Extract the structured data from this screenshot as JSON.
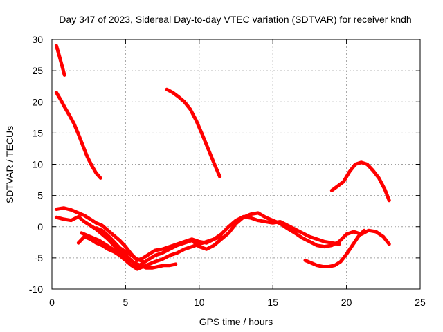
{
  "chart_data": {
    "type": "scatter",
    "title": "Day 347 of 2023, Sidereal Day-to-day VTEC variation (SDTVAR) for receiver kndh",
    "xlabel": "GPS time / hours",
    "ylabel": "SDTVAR / TECUs",
    "xlim": [
      0,
      25
    ],
    "ylim": [
      -10,
      30
    ],
    "xticks": [
      0,
      5,
      10,
      15,
      20,
      25
    ],
    "yticks": [
      -10,
      -5,
      0,
      5,
      10,
      15,
      20,
      25,
      30
    ],
    "xtick_labels": [
      "0",
      "5",
      "10",
      "15",
      "20",
      "25"
    ],
    "ytick_labels": [
      "-10",
      "-5",
      "0",
      "5",
      "10",
      "15",
      "20",
      "25",
      "30"
    ],
    "grid": true,
    "marker_color": "#ff0000",
    "series": [
      {
        "name": "arc-1",
        "x": [
          0.3,
          0.45,
          0.6,
          0.75,
          0.85
        ],
        "y": [
          29,
          27.8,
          26.5,
          25.2,
          24.3
        ]
      },
      {
        "name": "arc-2",
        "x": [
          0.3,
          0.6,
          0.9,
          1.2,
          1.5,
          1.8,
          2.1,
          2.4,
          2.7,
          3.0,
          3.3
        ],
        "y": [
          21.5,
          20.3,
          19.0,
          17.8,
          16.5,
          14.8,
          13.0,
          11.2,
          9.8,
          8.6,
          7.8
        ]
      },
      {
        "name": "arc-3",
        "x": [
          7.8,
          8.2,
          8.6,
          9.0,
          9.4,
          9.8,
          10.2,
          10.6,
          11.0,
          11.4
        ],
        "y": [
          22.0,
          21.5,
          20.8,
          20.0,
          18.8,
          17.0,
          14.8,
          12.5,
          10.2,
          8.0
        ]
      },
      {
        "name": "arc-4",
        "x": [
          19.0,
          19.4,
          19.8,
          20.2,
          20.6,
          21.0,
          21.4,
          21.8,
          22.2,
          22.6,
          22.9
        ],
        "y": [
          5.8,
          6.5,
          7.2,
          8.8,
          10.0,
          10.3,
          10.0,
          9.0,
          7.8,
          6.0,
          4.2
        ]
      },
      {
        "name": "arc-5",
        "x": [
          0.3,
          0.8,
          1.3,
          1.8,
          2.2,
          2.6,
          3.0,
          3.4,
          3.8,
          4.2,
          4.6,
          5.0,
          5.4,
          5.8,
          6.2,
          6.6,
          7.0,
          7.5,
          8.0,
          8.5,
          9.0,
          9.5,
          10.0,
          10.5,
          11.0,
          11.5,
          12.0,
          12.5,
          13.0,
          13.5,
          14.0,
          14.5,
          15.0,
          15.5,
          16.0,
          16.5,
          17.0,
          17.5,
          18.0,
          18.5,
          19.0,
          19.5
        ],
        "y": [
          2.8,
          3.0,
          2.7,
          2.2,
          1.8,
          1.2,
          0.6,
          0.2,
          -0.6,
          -1.4,
          -2.2,
          -3.2,
          -4.4,
          -5.4,
          -5.0,
          -4.4,
          -3.8,
          -3.6,
          -3.2,
          -2.8,
          -2.4,
          -2.0,
          -2.4,
          -2.6,
          -2.0,
          -1.2,
          0.0,
          1.0,
          1.6,
          1.4,
          1.0,
          0.8,
          0.6,
          0.8,
          0.2,
          -0.4,
          -1.0,
          -1.6,
          -2.0,
          -2.4,
          -2.6,
          -2.8
        ]
      },
      {
        "name": "arc-6",
        "x": [
          0.3,
          0.8,
          1.3,
          1.8,
          2.2,
          2.6,
          3.0,
          3.4,
          3.8,
          4.2,
          4.6,
          5.0,
          5.4,
          5.8,
          6.2,
          6.6,
          7.0,
          7.5,
          8.0,
          8.5,
          9.0,
          9.5,
          10.0,
          10.5,
          11.0,
          11.5,
          12.0,
          12.5,
          13.0,
          13.5,
          14.0,
          14.5,
          15.0,
          15.5,
          16.0,
          16.5,
          17.0,
          17.5,
          18.0,
          18.5,
          19.0,
          19.5,
          20.0,
          20.5,
          21.0,
          21.5,
          22.0,
          22.5,
          22.9
        ],
        "y": [
          1.5,
          1.2,
          1.0,
          1.6,
          0.8,
          0.2,
          -0.4,
          -1.2,
          -2.0,
          -3.0,
          -3.8,
          -4.6,
          -5.4,
          -6.4,
          -5.8,
          -5.2,
          -4.6,
          -4.2,
          -3.6,
          -3.0,
          -2.6,
          -2.2,
          -3.2,
          -3.6,
          -3.0,
          -2.0,
          -1.0,
          0.5,
          1.5,
          2.0,
          2.2,
          1.5,
          1.0,
          0.5,
          -0.3,
          -1.0,
          -1.8,
          -2.4,
          -3.0,
          -3.2,
          -3.0,
          -2.4,
          -1.2,
          -0.8,
          -1.2,
          -0.6,
          -0.8,
          -1.6,
          -2.8
        ]
      },
      {
        "name": "arc-7",
        "x": [
          1.8,
          2.2,
          2.6,
          3.0,
          3.4,
          3.8,
          4.2,
          4.6,
          5.0,
          5.4,
          5.8,
          6.2,
          6.6,
          7.0,
          7.5,
          8.0,
          8.5,
          9.0,
          9.5,
          10.0,
          10.5,
          11.0,
          11.5
        ],
        "y": [
          -2.6,
          -1.6,
          -2.0,
          -2.6,
          -3.0,
          -3.6,
          -4.0,
          -4.6,
          -5.4,
          -6.2,
          -6.8,
          -6.4,
          -6.0,
          -5.6,
          -5.2,
          -4.6,
          -4.2,
          -3.6,
          -3.2,
          -2.8,
          -2.4,
          -2.0,
          -1.6
        ]
      },
      {
        "name": "arc-8",
        "x": [
          2.0,
          2.4,
          2.8,
          3.2,
          3.6,
          4.0,
          4.4,
          4.8,
          5.2,
          5.6,
          6.0,
          6.4,
          6.8,
          7.2,
          7.6,
          8.0,
          8.4
        ],
        "y": [
          -1.0,
          -1.4,
          -1.8,
          -2.2,
          -2.8,
          -3.4,
          -4.0,
          -4.6,
          -5.2,
          -5.8,
          -6.2,
          -6.6,
          -6.6,
          -6.4,
          -6.2,
          -6.2,
          -6.0
        ]
      },
      {
        "name": "arc-9",
        "x": [
          17.2,
          17.6,
          18.0,
          18.4,
          18.8,
          19.2,
          19.6,
          20.0,
          20.4,
          20.8,
          21.2
        ],
        "y": [
          -5.4,
          -5.8,
          -6.2,
          -6.4,
          -6.4,
          -6.2,
          -5.6,
          -4.4,
          -3.0,
          -1.6,
          -0.6
        ]
      },
      {
        "name": "arc-10",
        "x": [
          3.0,
          3.4,
          3.8,
          4.2,
          4.6,
          5.0,
          5.4,
          5.8,
          6.2
        ],
        "y": [
          -0.2,
          -0.6,
          -1.4,
          -2.4,
          -3.4,
          -4.0,
          -4.6,
          -5.2,
          -5.6
        ]
      }
    ]
  }
}
